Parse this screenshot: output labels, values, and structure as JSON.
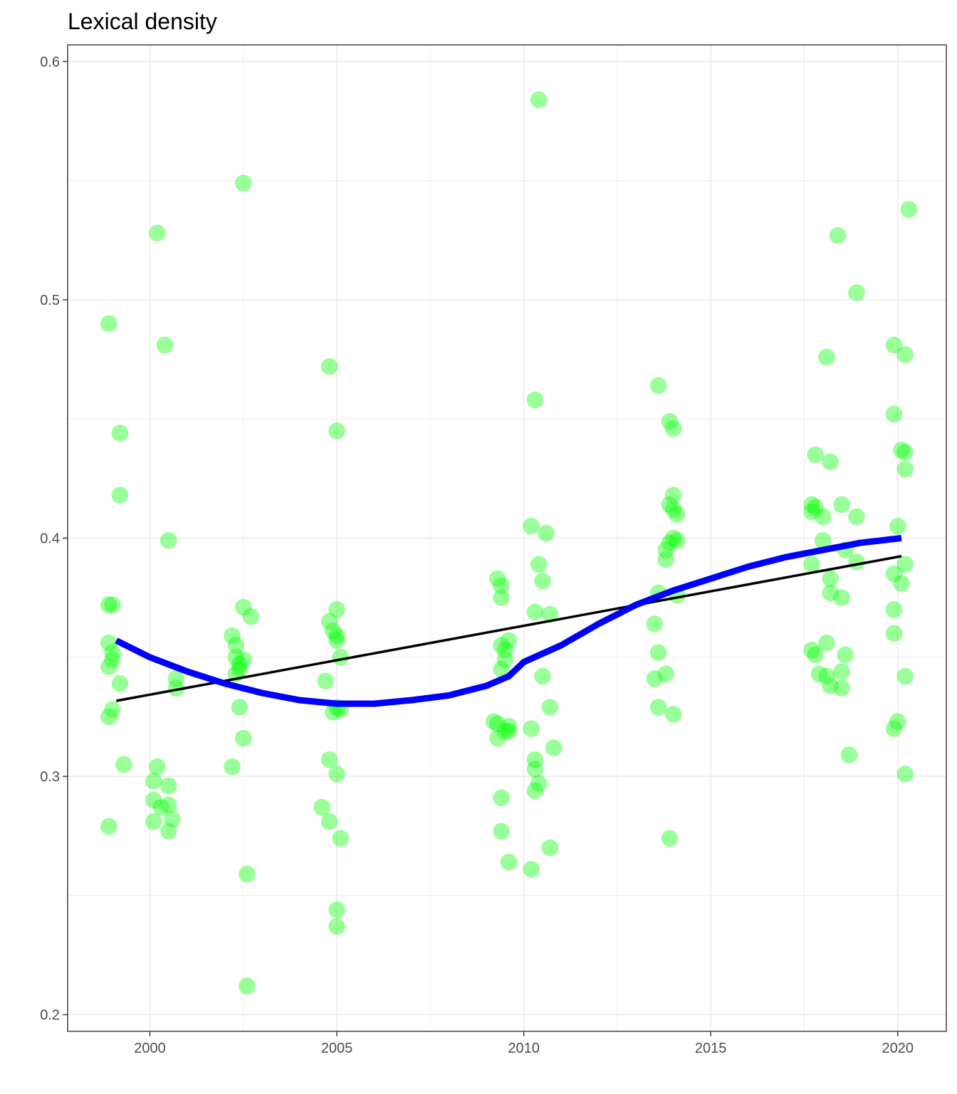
{
  "chart_data": {
    "type": "scatter",
    "title": "Lexical density",
    "xlabel": "",
    "ylabel": "",
    "xlim": [
      1997.8,
      2021.3
    ],
    "ylim": [
      0.193,
      0.607
    ],
    "x_ticks": [
      2000,
      2005,
      2010,
      2015,
      2020
    ],
    "y_ticks": [
      0.2,
      0.3,
      0.4,
      0.5,
      0.6
    ],
    "x_tick_labels": [
      "2000",
      "2005",
      "2010",
      "2015",
      "2020"
    ],
    "y_tick_labels": [
      "0.2",
      "0.3",
      "0.4",
      "0.5",
      "0.6"
    ],
    "grid": true,
    "legend": "none",
    "colors": {
      "points": "#00ff00",
      "point_opacity": 0.4,
      "linear_fit": "#000000",
      "smooth_fit": "#0000ff"
    },
    "points": [
      [
        1998.9,
        0.49
      ],
      [
        1999.2,
        0.444
      ],
      [
        1999.2,
        0.418
      ],
      [
        1998.9,
        0.372
      ],
      [
        1999.0,
        0.372
      ],
      [
        1998.9,
        0.356
      ],
      [
        1999.0,
        0.352
      ],
      [
        1999.0,
        0.349
      ],
      [
        1998.9,
        0.346
      ],
      [
        1999.2,
        0.339
      ],
      [
        1999.0,
        0.328
      ],
      [
        1998.9,
        0.325
      ],
      [
        1999.3,
        0.305
      ],
      [
        1998.9,
        0.279
      ],
      [
        2000.2,
        0.528
      ],
      [
        2000.4,
        0.481
      ],
      [
        2000.5,
        0.399
      ],
      [
        2000.7,
        0.341
      ],
      [
        2000.7,
        0.337
      ],
      [
        2000.2,
        0.304
      ],
      [
        2000.1,
        0.298
      ],
      [
        2000.5,
        0.296
      ],
      [
        2000.1,
        0.29
      ],
      [
        2000.5,
        0.288
      ],
      [
        2000.3,
        0.287
      ],
      [
        2000.1,
        0.281
      ],
      [
        2000.6,
        0.282
      ],
      [
        2000.5,
        0.277
      ],
      [
        2002.5,
        0.549
      ],
      [
        2002.5,
        0.371
      ],
      [
        2002.7,
        0.367
      ],
      [
        2002.2,
        0.359
      ],
      [
        2002.3,
        0.355
      ],
      [
        2002.3,
        0.35
      ],
      [
        2002.5,
        0.349
      ],
      [
        2002.4,
        0.347
      ],
      [
        2002.4,
        0.345
      ],
      [
        2002.3,
        0.343
      ],
      [
        2002.4,
        0.329
      ],
      [
        2002.5,
        0.316
      ],
      [
        2002.2,
        0.304
      ],
      [
        2002.6,
        0.259
      ],
      [
        2002.6,
        0.212
      ],
      [
        2004.8,
        0.472
      ],
      [
        2005.0,
        0.445
      ],
      [
        2005.0,
        0.37
      ],
      [
        2004.8,
        0.365
      ],
      [
        2004.9,
        0.361
      ],
      [
        2005.0,
        0.359
      ],
      [
        2005.0,
        0.357
      ],
      [
        2005.1,
        0.35
      ],
      [
        2004.7,
        0.34
      ],
      [
        2005.0,
        0.329
      ],
      [
        2004.9,
        0.327
      ],
      [
        2005.1,
        0.328
      ],
      [
        2004.8,
        0.307
      ],
      [
        2005.0,
        0.301
      ],
      [
        2004.6,
        0.287
      ],
      [
        2004.8,
        0.281
      ],
      [
        2005.1,
        0.274
      ],
      [
        2005.0,
        0.244
      ],
      [
        2005.0,
        0.237
      ],
      [
        2010.4,
        0.584
      ],
      [
        2010.3,
        0.458
      ],
      [
        2010.2,
        0.405
      ],
      [
        2010.6,
        0.402
      ],
      [
        2010.4,
        0.389
      ],
      [
        2009.3,
        0.383
      ],
      [
        2010.5,
        0.382
      ],
      [
        2009.4,
        0.38
      ],
      [
        2009.4,
        0.375
      ],
      [
        2010.3,
        0.369
      ],
      [
        2010.7,
        0.368
      ],
      [
        2009.6,
        0.357
      ],
      [
        2009.4,
        0.355
      ],
      [
        2009.5,
        0.353
      ],
      [
        2009.5,
        0.349
      ],
      [
        2009.4,
        0.345
      ],
      [
        2010.5,
        0.342
      ],
      [
        2010.7,
        0.329
      ],
      [
        2009.2,
        0.323
      ],
      [
        2009.3,
        0.322
      ],
      [
        2009.6,
        0.321
      ],
      [
        2009.5,
        0.319
      ],
      [
        2009.6,
        0.319
      ],
      [
        2010.2,
        0.32
      ],
      [
        2009.3,
        0.316
      ],
      [
        2010.8,
        0.312
      ],
      [
        2010.3,
        0.307
      ],
      [
        2010.3,
        0.303
      ],
      [
        2010.4,
        0.297
      ],
      [
        2010.3,
        0.294
      ],
      [
        2009.4,
        0.291
      ],
      [
        2009.4,
        0.277
      ],
      [
        2010.7,
        0.27
      ],
      [
        2009.6,
        0.264
      ],
      [
        2010.2,
        0.261
      ],
      [
        2013.6,
        0.464
      ],
      [
        2013.9,
        0.449
      ],
      [
        2014.0,
        0.446
      ],
      [
        2014.0,
        0.418
      ],
      [
        2013.9,
        0.414
      ],
      [
        2014.0,
        0.412
      ],
      [
        2014.1,
        0.41
      ],
      [
        2014.0,
        0.4
      ],
      [
        2014.1,
        0.399
      ],
      [
        2013.9,
        0.398
      ],
      [
        2013.8,
        0.395
      ],
      [
        2013.8,
        0.391
      ],
      [
        2013.6,
        0.377
      ],
      [
        2014.1,
        0.376
      ],
      [
        2013.5,
        0.364
      ],
      [
        2013.6,
        0.352
      ],
      [
        2013.8,
        0.343
      ],
      [
        2013.5,
        0.341
      ],
      [
        2013.6,
        0.329
      ],
      [
        2014.0,
        0.326
      ],
      [
        2013.9,
        0.274
      ],
      [
        2018.4,
        0.527
      ],
      [
        2018.9,
        0.503
      ],
      [
        2018.1,
        0.476
      ],
      [
        2017.8,
        0.435
      ],
      [
        2018.2,
        0.432
      ],
      [
        2017.7,
        0.414
      ],
      [
        2017.8,
        0.413
      ],
      [
        2018.5,
        0.414
      ],
      [
        2017.7,
        0.411
      ],
      [
        2018.0,
        0.409
      ],
      [
        2018.9,
        0.409
      ],
      [
        2018.0,
        0.399
      ],
      [
        2018.6,
        0.395
      ],
      [
        2018.9,
        0.39
      ],
      [
        2017.7,
        0.389
      ],
      [
        2018.2,
        0.383
      ],
      [
        2018.2,
        0.377
      ],
      [
        2018.5,
        0.375
      ],
      [
        2018.1,
        0.356
      ],
      [
        2017.7,
        0.353
      ],
      [
        2017.8,
        0.351
      ],
      [
        2018.6,
        0.351
      ],
      [
        2017.9,
        0.343
      ],
      [
        2018.1,
        0.342
      ],
      [
        2018.5,
        0.344
      ],
      [
        2018.2,
        0.338
      ],
      [
        2018.5,
        0.337
      ],
      [
        2018.7,
        0.309
      ],
      [
        2020.3,
        0.538
      ],
      [
        2019.9,
        0.481
      ],
      [
        2020.2,
        0.477
      ],
      [
        2019.9,
        0.452
      ],
      [
        2020.1,
        0.437
      ],
      [
        2020.2,
        0.436
      ],
      [
        2020.2,
        0.429
      ],
      [
        2020.0,
        0.405
      ],
      [
        2020.2,
        0.389
      ],
      [
        2019.9,
        0.385
      ],
      [
        2020.1,
        0.381
      ],
      [
        2019.9,
        0.37
      ],
      [
        2019.9,
        0.36
      ],
      [
        2020.2,
        0.342
      ],
      [
        2020.0,
        0.323
      ],
      [
        2019.9,
        0.32
      ],
      [
        2020.2,
        0.301
      ]
    ],
    "linear_fit": {
      "x": [
        1999.1,
        2020.1
      ],
      "y": [
        0.3317,
        0.3924
      ]
    },
    "smooth_fit": {
      "x": [
        1999.1,
        2000.0,
        2001.0,
        2002.0,
        2003.0,
        2004.0,
        2005.0,
        2006.0,
        2007.0,
        2008.0,
        2009.0,
        2009.6,
        2010.0,
        2011.0,
        2012.0,
        2013.0,
        2014.0,
        2015.0,
        2016.0,
        2017.0,
        2018.0,
        2019.0,
        2020.1
      ],
      "y": [
        0.357,
        0.35,
        0.344,
        0.339,
        0.335,
        0.332,
        0.3305,
        0.3305,
        0.332,
        0.334,
        0.338,
        0.342,
        0.348,
        0.355,
        0.364,
        0.372,
        0.378,
        0.383,
        0.388,
        0.392,
        0.395,
        0.398,
        0.4
      ]
    }
  }
}
